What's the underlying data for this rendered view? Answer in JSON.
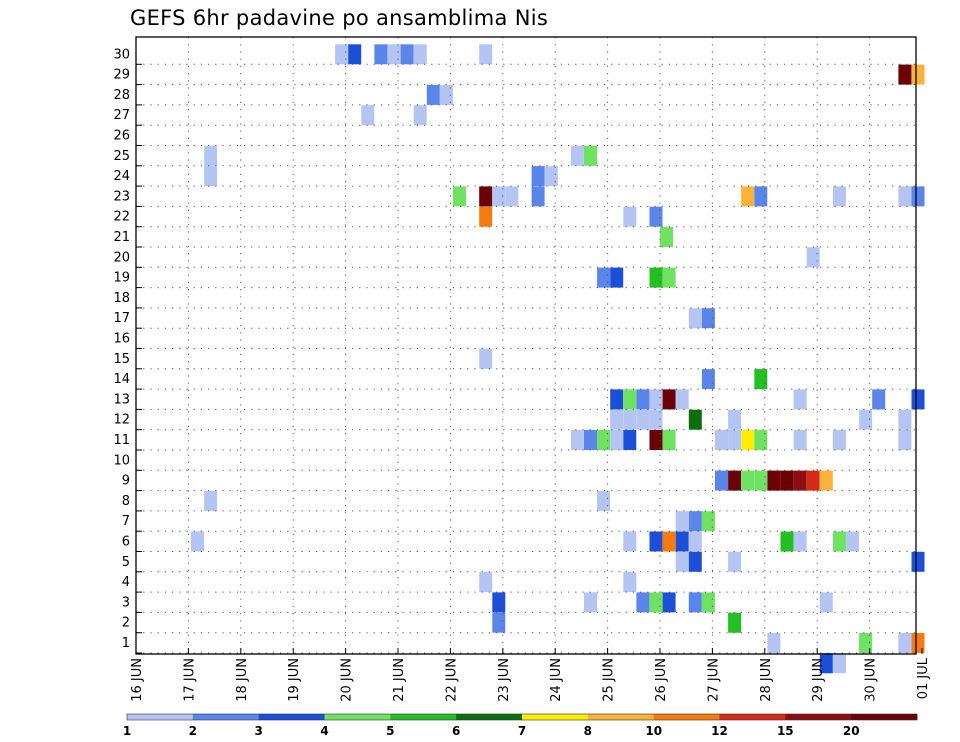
{
  "chart_data": {
    "type": "heatmap",
    "title": "GEFS 6hr padavine po ansamblima Nis",
    "xlabel": "",
    "ylabel": "",
    "y_members": [
      1,
      2,
      3,
      4,
      5,
      6,
      7,
      8,
      9,
      10,
      11,
      12,
      13,
      14,
      15,
      16,
      17,
      18,
      19,
      20,
      21,
      22,
      23,
      24,
      25,
      26,
      27,
      28,
      29,
      30
    ],
    "x_ticks": [
      "16 JUN",
      "17 JUN",
      "18 JUN",
      "19 JUN",
      "20 JUN",
      "21 JUN",
      "22 JUN",
      "23 JUN",
      "24 JUN",
      "25 JUN",
      "26 JUN",
      "27 JUN",
      "28 JUN",
      "29 JUN",
      "30 JUN",
      "01 JUL"
    ],
    "x_range_days": [
      0,
      15
    ],
    "grid": true,
    "colorbar": {
      "labels": [
        "1",
        "2",
        "3",
        "4",
        "5",
        "6",
        "7",
        "8",
        "10",
        "12",
        "15",
        "20"
      ],
      "colors": [
        "#b4c5f4",
        "#5a85eb",
        "#1c4fd8",
        "#6fe262",
        "#22c022",
        "#0c6e0c",
        "#ffee00",
        "#fbb238",
        "#f57a10",
        "#d52a16",
        "#8e0d10",
        "#6b0006"
      ]
    },
    "cells": [
      {
        "m": 30,
        "t": 3.8,
        "c": 0
      },
      {
        "m": 30,
        "t": 4.05,
        "c": 2
      },
      {
        "m": 30,
        "t": 4.55,
        "c": 1
      },
      {
        "m": 30,
        "t": 4.8,
        "c": 0
      },
      {
        "m": 30,
        "t": 5.05,
        "c": 1
      },
      {
        "m": 30,
        "t": 5.3,
        "c": 0
      },
      {
        "m": 30,
        "t": 6.55,
        "c": 0
      },
      {
        "m": 29,
        "t": 14.55,
        "c": 11
      },
      {
        "m": 29,
        "t": 14.8,
        "c": 7
      },
      {
        "m": 28,
        "t": 5.55,
        "c": 1
      },
      {
        "m": 28,
        "t": 5.8,
        "c": 0
      },
      {
        "m": 27,
        "t": 4.3,
        "c": 0
      },
      {
        "m": 27,
        "t": 5.3,
        "c": 0
      },
      {
        "m": 25,
        "t": 1.3,
        "c": 0
      },
      {
        "m": 25,
        "t": 8.3,
        "c": 0
      },
      {
        "m": 25,
        "t": 8.55,
        "c": 3
      },
      {
        "m": 24,
        "t": 1.3,
        "c": 0
      },
      {
        "m": 24,
        "t": 7.55,
        "c": 1
      },
      {
        "m": 24,
        "t": 7.8,
        "c": 0
      },
      {
        "m": 23,
        "t": 6.05,
        "c": 3
      },
      {
        "m": 23,
        "t": 6.55,
        "c": 11
      },
      {
        "m": 23,
        "t": 6.8,
        "c": 0
      },
      {
        "m": 23,
        "t": 7.55,
        "c": 1
      },
      {
        "m": 23,
        "t": 7.05,
        "c": 0
      },
      {
        "m": 23,
        "t": 11.55,
        "c": 7
      },
      {
        "m": 23,
        "t": 11.8,
        "c": 1
      },
      {
        "m": 23,
        "t": 13.3,
        "c": 0
      },
      {
        "m": 23,
        "t": 14.55,
        "c": 0
      },
      {
        "m": 23,
        "t": 14.8,
        "c": 1
      },
      {
        "m": 22,
        "t": 6.55,
        "c": 8
      },
      {
        "m": 22,
        "t": 9.3,
        "c": 0
      },
      {
        "m": 22,
        "t": 9.8,
        "c": 1
      },
      {
        "m": 21,
        "t": 10.0,
        "c": 3
      },
      {
        "m": 20,
        "t": 12.8,
        "c": 0
      },
      {
        "m": 19,
        "t": 8.8,
        "c": 1
      },
      {
        "m": 19,
        "t": 9.05,
        "c": 2
      },
      {
        "m": 19,
        "t": 9.8,
        "c": 4
      },
      {
        "m": 19,
        "t": 10.05,
        "c": 3
      },
      {
        "m": 17,
        "t": 10.55,
        "c": 0
      },
      {
        "m": 17,
        "t": 10.8,
        "c": 1
      },
      {
        "m": 15,
        "t": 6.55,
        "c": 0
      },
      {
        "m": 14,
        "t": 10.8,
        "c": 1
      },
      {
        "m": 14,
        "t": 11.8,
        "c": 4
      },
      {
        "m": 13,
        "t": 9.05,
        "c": 2
      },
      {
        "m": 13,
        "t": 9.3,
        "c": 3
      },
      {
        "m": 13,
        "t": 9.55,
        "c": 1
      },
      {
        "m": 13,
        "t": 9.8,
        "c": 0
      },
      {
        "m": 13,
        "t": 10.05,
        "c": 11
      },
      {
        "m": 13,
        "t": 10.3,
        "c": 0
      },
      {
        "m": 13,
        "t": 12.55,
        "c": 0
      },
      {
        "m": 13,
        "t": 14.05,
        "c": 1
      },
      {
        "m": 13,
        "t": 14.8,
        "c": 2
      },
      {
        "m": 12,
        "t": 9.05,
        "c": 0
      },
      {
        "m": 12,
        "t": 9.3,
        "c": 0
      },
      {
        "m": 12,
        "t": 9.55,
        "c": 0
      },
      {
        "m": 12,
        "t": 9.8,
        "c": 0
      },
      {
        "m": 12,
        "t": 10.55,
        "c": 5
      },
      {
        "m": 12,
        "t": 11.3,
        "c": 0
      },
      {
        "m": 12,
        "t": 13.8,
        "c": 0
      },
      {
        "m": 12,
        "t": 14.55,
        "c": 0
      },
      {
        "m": 11,
        "t": 8.3,
        "c": 0
      },
      {
        "m": 11,
        "t": 8.55,
        "c": 1
      },
      {
        "m": 11,
        "t": 8.8,
        "c": 3
      },
      {
        "m": 11,
        "t": 9.05,
        "c": 0
      },
      {
        "m": 11,
        "t": 9.3,
        "c": 2
      },
      {
        "m": 11,
        "t": 9.8,
        "c": 11
      },
      {
        "m": 11,
        "t": 10.05,
        "c": 3
      },
      {
        "m": 11,
        "t": 11.05,
        "c": 0
      },
      {
        "m": 11,
        "t": 11.3,
        "c": 0
      },
      {
        "m": 11,
        "t": 11.55,
        "c": 6
      },
      {
        "m": 11,
        "t": 11.8,
        "c": 3
      },
      {
        "m": 11,
        "t": 12.55,
        "c": 0
      },
      {
        "m": 11,
        "t": 13.3,
        "c": 0
      },
      {
        "m": 11,
        "t": 14.55,
        "c": 0
      },
      {
        "m": 9,
        "t": 11.05,
        "c": 1
      },
      {
        "m": 9,
        "t": 11.3,
        "c": 11
      },
      {
        "m": 9,
        "t": 11.55,
        "c": 3
      },
      {
        "m": 9,
        "t": 11.8,
        "c": 3
      },
      {
        "m": 9,
        "t": 12.05,
        "c": 11
      },
      {
        "m": 9,
        "t": 12.3,
        "c": 11
      },
      {
        "m": 9,
        "t": 12.55,
        "c": 10
      },
      {
        "m": 9,
        "t": 12.8,
        "c": 9
      },
      {
        "m": 9,
        "t": 13.05,
        "c": 7
      },
      {
        "m": 8,
        "t": 1.3,
        "c": 0
      },
      {
        "m": 8,
        "t": 8.8,
        "c": 0
      },
      {
        "m": 7,
        "t": 10.3,
        "c": 0
      },
      {
        "m": 7,
        "t": 10.55,
        "c": 1
      },
      {
        "m": 7,
        "t": 10.8,
        "c": 3
      },
      {
        "m": 6,
        "t": 1.05,
        "c": 0
      },
      {
        "m": 6,
        "t": 9.3,
        "c": 0
      },
      {
        "m": 6,
        "t": 9.8,
        "c": 2
      },
      {
        "m": 6,
        "t": 10.05,
        "c": 8
      },
      {
        "m": 6,
        "t": 10.3,
        "c": 2
      },
      {
        "m": 6,
        "t": 10.55,
        "c": 0
      },
      {
        "m": 6,
        "t": 12.3,
        "c": 4
      },
      {
        "m": 6,
        "t": 12.55,
        "c": 0
      },
      {
        "m": 6,
        "t": 13.3,
        "c": 3
      },
      {
        "m": 6,
        "t": 13.55,
        "c": 0
      },
      {
        "m": 5,
        "t": 10.3,
        "c": 0
      },
      {
        "m": 5,
        "t": 10.55,
        "c": 2
      },
      {
        "m": 5,
        "t": 11.3,
        "c": 0
      },
      {
        "m": 5,
        "t": 14.8,
        "c": 2
      },
      {
        "m": 4,
        "t": 6.55,
        "c": 0
      },
      {
        "m": 4,
        "t": 9.3,
        "c": 0
      },
      {
        "m": 3,
        "t": 6.8,
        "c": 2
      },
      {
        "m": 3,
        "t": 8.55,
        "c": 0
      },
      {
        "m": 3,
        "t": 9.55,
        "c": 1
      },
      {
        "m": 3,
        "t": 9.8,
        "c": 3
      },
      {
        "m": 3,
        "t": 10.05,
        "c": 2
      },
      {
        "m": 3,
        "t": 10.55,
        "c": 1
      },
      {
        "m": 3,
        "t": 10.8,
        "c": 3
      },
      {
        "m": 3,
        "t": 13.05,
        "c": 0
      },
      {
        "m": 2,
        "t": 6.8,
        "c": 1
      },
      {
        "m": 2,
        "t": 11.3,
        "c": 4
      },
      {
        "m": 1,
        "t": 12.05,
        "c": 0
      },
      {
        "m": 1,
        "t": 13.8,
        "c": 3
      },
      {
        "m": 1,
        "t": 14.55,
        "c": 0
      },
      {
        "m": 1,
        "t": 14.8,
        "c": 8
      },
      {
        "m": 0,
        "t": 13.05,
        "c": 2
      },
      {
        "m": 0,
        "t": 13.3,
        "c": 0
      }
    ]
  }
}
